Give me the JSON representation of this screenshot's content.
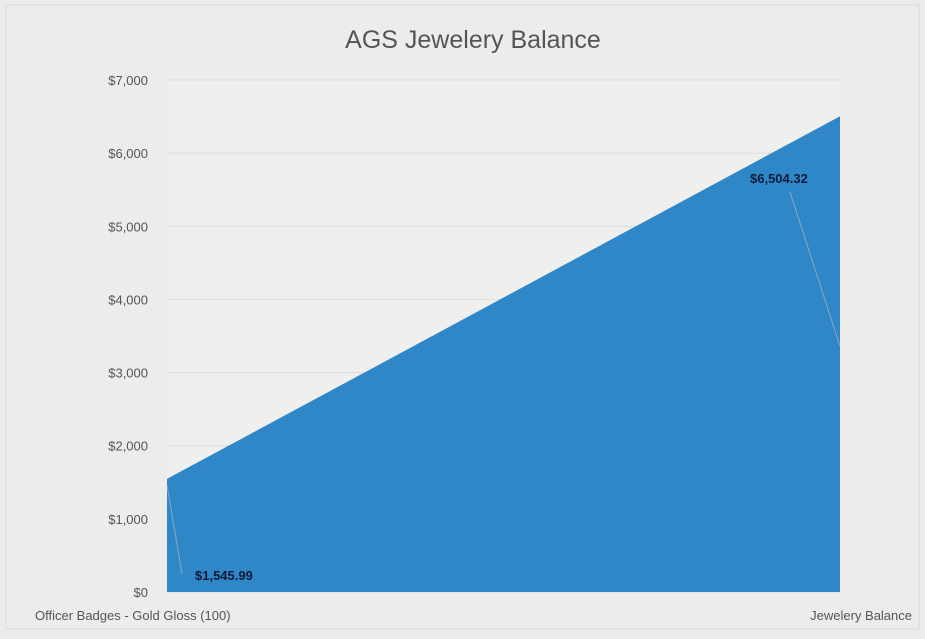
{
  "chart_data": {
    "type": "area",
    "title": "AGS Jewelery Balance",
    "categories": [
      "Officer Badges - Gold Gloss (100)",
      "Jewelery Balance"
    ],
    "series": [
      {
        "values": [
          1545.99,
          6504.32
        ],
        "color": "#2f87c8"
      }
    ],
    "data_labels": [
      "$1,545.99",
      "$6,504.32"
    ],
    "y_ticks": [
      "$0",
      "$1,000",
      "$2,000",
      "$3,000",
      "$4,000",
      "$5,000",
      "$6,000",
      "$7,000"
    ],
    "ylim": [
      0,
      7000
    ],
    "grid": true,
    "legend": "none"
  }
}
